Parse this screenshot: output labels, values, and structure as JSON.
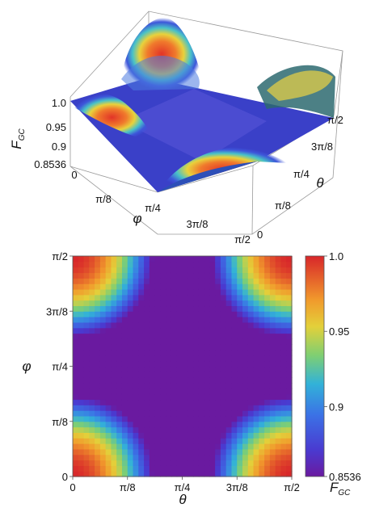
{
  "chart_data": [
    {
      "type": "surface",
      "function_label": "F_GC",
      "zlabel": {
        "main": "F",
        "sub": "GC"
      },
      "xlabel": "θ",
      "ylabel": "φ",
      "zlim": [
        0.8536,
        1.0
      ],
      "z_ticks": [
        "1.0",
        "0.95",
        "0.9",
        "0.8536"
      ],
      "theta_ticks": [
        "0",
        "π/8",
        "π/4",
        "3π/8",
        "π/2"
      ],
      "phi_ticks": [
        "0",
        "π/8",
        "π/4",
        "3π/8",
        "π/2"
      ],
      "corner_value": 1.0,
      "center_value": 0.8536
    },
    {
      "type": "heatmap",
      "xlabel": "θ",
      "ylabel": "φ",
      "x_ticks": [
        "0",
        "π/8",
        "π/4",
        "3π/8",
        "π/2"
      ],
      "y_ticks": [
        "0",
        "π/8",
        "π/4",
        "3π/8",
        "π/2"
      ],
      "colorbar": {
        "ticks": [
          "1.0",
          "0.95",
          "0.9",
          "0.8536"
        ],
        "label": {
          "main": "F",
          "sub": "GC"
        },
        "range": [
          0.8536,
          1.0
        ]
      },
      "corner_value": 1.0,
      "center_value": 0.8536
    }
  ]
}
